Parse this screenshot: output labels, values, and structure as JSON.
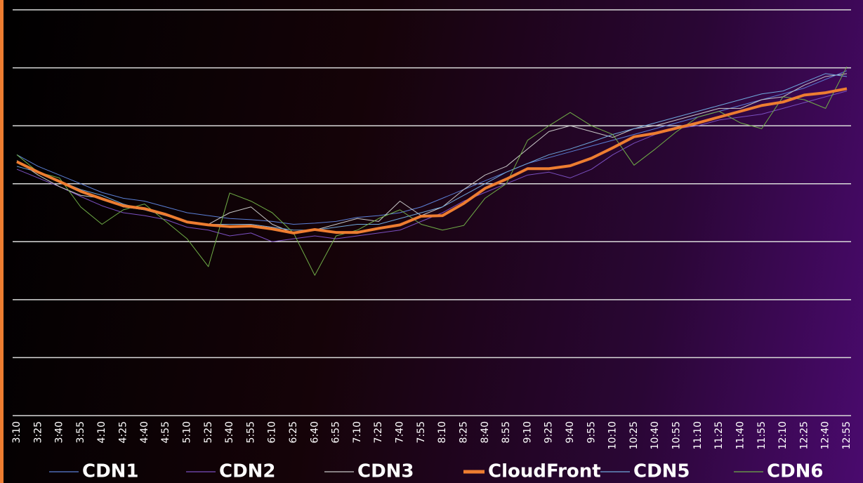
{
  "chart_data": {
    "type": "line",
    "categories": [
      "3:10",
      "3:25",
      "3:40",
      "3:55",
      "4:10",
      "4:25",
      "4:40",
      "4:55",
      "5:10",
      "5:25",
      "5:40",
      "5:55",
      "6:10",
      "6:25",
      "6:40",
      "6:55",
      "7:10",
      "7:25",
      "7:40",
      "7:55",
      "8:10",
      "8:25",
      "8:40",
      "8:55",
      "9:10",
      "9:25",
      "9:40",
      "9:55",
      "10:10",
      "10:25",
      "10:40",
      "10:55",
      "11:10",
      "11:25",
      "11:40",
      "11:55",
      "12:10",
      "12:25",
      "12:40",
      "12:55"
    ],
    "series": [
      {
        "name": "CDN1",
        "color": "#5b7fd6",
        "width": 1,
        "values": [
          4.5,
          4.3,
          4.15,
          4.0,
          3.85,
          3.75,
          3.7,
          3.6,
          3.5,
          3.45,
          3.4,
          3.38,
          3.35,
          3.3,
          3.32,
          3.35,
          3.42,
          3.45,
          3.5,
          3.6,
          3.75,
          3.9,
          4.05,
          4.2,
          4.35,
          4.45,
          4.55,
          4.65,
          4.75,
          4.85,
          4.95,
          5.05,
          5.15,
          5.25,
          5.35,
          5.45,
          5.55,
          5.65,
          5.8,
          5.95
        ]
      },
      {
        "name": "CDN2",
        "color": "#7a4fc0",
        "width": 1,
        "values": [
          4.25,
          4.1,
          3.95,
          3.78,
          3.62,
          3.5,
          3.45,
          3.38,
          3.25,
          3.2,
          3.1,
          3.15,
          3.0,
          3.05,
          3.1,
          3.05,
          3.1,
          3.15,
          3.2,
          3.35,
          3.5,
          3.7,
          3.85,
          4.0,
          4.15,
          4.2,
          4.1,
          4.25,
          4.5,
          4.7,
          4.85,
          4.95,
          5.0,
          5.1,
          5.15,
          5.2,
          5.3,
          5.4,
          5.5,
          5.6
        ]
      },
      {
        "name": "CDN3",
        "color": "#c8c8c8",
        "width": 1,
        "values": [
          4.4,
          4.15,
          3.95,
          3.8,
          3.75,
          3.6,
          3.55,
          3.45,
          3.35,
          3.3,
          3.5,
          3.6,
          3.3,
          3.15,
          3.2,
          3.3,
          3.4,
          3.35,
          3.7,
          3.45,
          3.6,
          3.9,
          4.15,
          4.3,
          4.6,
          4.9,
          5.0,
          4.9,
          4.8,
          4.95,
          5.0,
          5.1,
          5.2,
          5.3,
          5.3,
          5.45,
          5.5,
          5.7,
          5.85,
          5.9
        ]
      },
      {
        "name": "CloudFront",
        "color": "#ed7d31",
        "width": 4,
        "values": [
          4.38,
          4.2,
          4.04,
          3.87,
          3.74,
          3.62,
          3.57,
          3.47,
          3.34,
          3.29,
          3.26,
          3.27,
          3.22,
          3.15,
          3.21,
          3.16,
          3.16,
          3.23,
          3.29,
          3.44,
          3.45,
          3.66,
          3.92,
          4.08,
          4.26,
          4.26,
          4.31,
          4.44,
          4.62,
          4.81,
          4.87,
          4.96,
          5.05,
          5.15,
          5.25,
          5.35,
          5.41,
          5.53,
          5.57,
          5.64
        ]
      },
      {
        "name": "CDN5",
        "color": "#6fa8dc",
        "width": 1,
        "values": [
          4.3,
          4.2,
          4.05,
          3.9,
          3.8,
          3.65,
          3.55,
          3.45,
          3.35,
          3.3,
          3.3,
          3.3,
          3.25,
          3.2,
          3.2,
          3.25,
          3.3,
          3.3,
          3.4,
          3.5,
          3.6,
          3.8,
          4.0,
          4.2,
          4.35,
          4.5,
          4.6,
          4.72,
          4.85,
          4.95,
          5.05,
          5.15,
          5.25,
          5.35,
          5.45,
          5.55,
          5.6,
          5.75,
          5.9,
          5.85
        ]
      },
      {
        "name": "CDN6",
        "color": "#70ad47",
        "width": 1,
        "values": [
          4.5,
          4.2,
          4.1,
          3.6,
          3.3,
          3.55,
          3.65,
          3.35,
          3.05,
          2.57,
          3.84,
          3.7,
          3.5,
          3.15,
          2.42,
          3.1,
          3.2,
          3.4,
          3.55,
          3.3,
          3.2,
          3.28,
          3.75,
          4.0,
          4.75,
          5.0,
          5.23,
          5.0,
          4.85,
          4.32,
          4.6,
          4.9,
          5.15,
          5.25,
          5.05,
          4.95,
          5.5,
          5.45,
          5.3,
          6.02
        ]
      }
    ],
    "ylim": [
      0,
      7
    ],
    "yticks": [
      0,
      1,
      2,
      3,
      4,
      5,
      6,
      7
    ],
    "grid": true,
    "legend": "bottom"
  }
}
